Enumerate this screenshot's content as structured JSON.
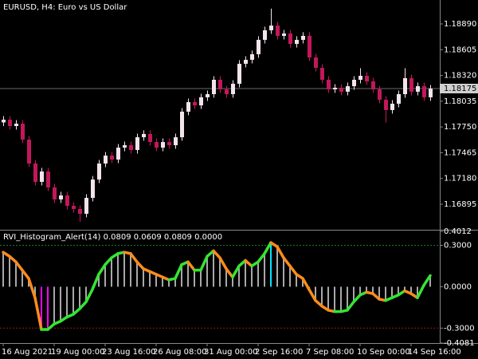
{
  "chart_data": [
    {
      "type": "candlestick",
      "title": "EURUSD, H4:  Euro vs US Dollar",
      "up_color": "#f3e4ec",
      "down_color": "#c2185b",
      "ylim": [
        1.16612,
        1.19155
      ],
      "yticks": [
        {
          "value": 1.1889,
          "label": "1.18890"
        },
        1.18605,
        {
          "value": 1.1832,
          "label": "1.18320"
        },
        1.18035,
        {
          "value": 1.1775,
          "label": "1.17750"
        },
        1.17465,
        {
          "value": 1.1718,
          "label": "1.17180"
        },
        1.16895
      ],
      "last_price": 1.18175,
      "open": [
        1.178,
        1.1783,
        1.1776,
        1.17786,
        1.1761,
        1.17345,
        1.17142,
        1.17257,
        1.1708,
        1.16948,
        1.16992,
        1.16877,
        1.16842,
        1.16789,
        1.16965,
        1.17168,
        1.17345,
        1.17433,
        1.17389,
        1.17521,
        1.17548,
        1.17495,
        1.17636,
        1.17672,
        1.17583,
        1.17521,
        1.17583,
        1.17548,
        1.17636,
        1.17919,
        1.18025,
        1.17989,
        1.18078,
        1.18113,
        1.18272,
        1.18166,
        1.18113,
        1.18228,
        1.18449,
        1.18493,
        1.18555,
        1.18714,
        1.1882,
        1.18872,
        1.18758,
        1.18784,
        1.18669,
        1.18714,
        1.18758,
        1.18519,
        1.18404,
        1.18272,
        1.18166,
        1.18184,
        1.1814,
        1.18201,
        1.18272,
        1.18316,
        1.18254,
        1.18166,
        1.18051,
        1.17937,
        1.18007,
        1.18113,
        1.1829,
        1.1814,
        1.18201,
        1.18078
      ],
      "high": [
        1.1787,
        1.1787,
        1.17826,
        1.17826,
        1.1765,
        1.17385,
        1.17297,
        1.17297,
        1.1712,
        1.17032,
        1.17032,
        1.16917,
        1.16882,
        1.17005,
        1.17208,
        1.17385,
        1.17473,
        1.17473,
        1.17561,
        1.17588,
        1.17588,
        1.17676,
        1.17712,
        1.17712,
        1.17623,
        1.17623,
        1.17623,
        1.17676,
        1.17959,
        1.18065,
        1.18065,
        1.18118,
        1.18153,
        1.18312,
        1.18312,
        1.18206,
        1.18268,
        1.18489,
        1.18533,
        1.18595,
        1.18754,
        1.1886,
        1.1906,
        1.18912,
        1.18824,
        1.18824,
        1.18754,
        1.18798,
        1.18798,
        1.18559,
        1.18444,
        1.18312,
        1.18224,
        1.18224,
        1.18241,
        1.18312,
        1.184,
        1.18356,
        1.18294,
        1.18206,
        1.18091,
        1.18047,
        1.18153,
        1.184,
        1.1833,
        1.18241,
        1.18241,
        1.18215
      ],
      "low": [
        1.1776,
        1.1772,
        1.1772,
        1.1757,
        1.17305,
        1.17102,
        1.17102,
        1.1704,
        1.16908,
        1.16908,
        1.16837,
        1.16802,
        1.167,
        1.16749,
        1.16925,
        1.17128,
        1.17305,
        1.17349,
        1.17349,
        1.17481,
        1.17455,
        1.17455,
        1.17596,
        1.17543,
        1.17481,
        1.17481,
        1.17508,
        1.17508,
        1.17596,
        1.17879,
        1.17949,
        1.17949,
        1.18038,
        1.18073,
        1.18126,
        1.18073,
        1.18073,
        1.18188,
        1.18409,
        1.18453,
        1.18515,
        1.18674,
        1.1878,
        1.18718,
        1.18718,
        1.18629,
        1.18629,
        1.18674,
        1.18479,
        1.18364,
        1.18232,
        1.18126,
        1.18126,
        1.181,
        1.181,
        1.18161,
        1.18232,
        1.18214,
        1.18126,
        1.18011,
        1.178,
        1.17897,
        1.17967,
        1.18073,
        1.181,
        1.181,
        1.18038,
        1.18038
      ],
      "close": [
        1.1783,
        1.1776,
        1.17786,
        1.1761,
        1.17345,
        1.17142,
        1.17257,
        1.1708,
        1.16948,
        1.16992,
        1.16877,
        1.16842,
        1.16789,
        1.16965,
        1.17168,
        1.17345,
        1.17433,
        1.17389,
        1.17521,
        1.17548,
        1.17495,
        1.17636,
        1.17672,
        1.17583,
        1.17521,
        1.17583,
        1.17548,
        1.17636,
        1.17919,
        1.18025,
        1.17989,
        1.18078,
        1.18113,
        1.18272,
        1.18166,
        1.18113,
        1.18228,
        1.18449,
        1.18493,
        1.18555,
        1.18714,
        1.1882,
        1.18872,
        1.18758,
        1.18784,
        1.18669,
        1.18714,
        1.18758,
        1.18519,
        1.18404,
        1.18272,
        1.18166,
        1.18184,
        1.1814,
        1.18201,
        1.18272,
        1.18316,
        1.18254,
        1.18166,
        1.18051,
        1.17937,
        1.18007,
        1.18113,
        1.1829,
        1.1814,
        1.18201,
        1.18078,
        1.18175
      ]
    },
    {
      "type": "histogram-line",
      "title": "RVI_Histogram_Alert(14) 0.0809 0.0609 0.0809 0.0000",
      "ylim": [
        -0.4081,
        0.4012
      ],
      "yticks": [
        0.4012,
        {
          "value": 0.3,
          "label": "0.3000"
        },
        {
          "value": 0,
          "label": "0.0000"
        },
        {
          "value": -0.3,
          "label": "-0.3000"
        },
        -0.4081
      ],
      "levels": [
        0.3,
        -0.3
      ],
      "level_colors": [
        "#1f7a1f",
        "#8b1a1a"
      ],
      "bar_color": "#a8a8a8",
      "above_level_color": "#00e5ff",
      "below_level_color": "#ff00ff",
      "up_color": "#32e632",
      "down_color": "#ff8c1a",
      "xlim": [
        -0.5,
        68.5
      ],
      "xticks": [
        {
          "value": 0,
          "label": "16 Aug 2021"
        },
        {
          "value": 8,
          "label": "19 Aug 00:00"
        },
        {
          "value": 16,
          "label": "23 Aug 16:00"
        },
        {
          "value": 24,
          "label": "26 Aug 08:00"
        },
        {
          "value": 32,
          "label": "31 Aug 00:00"
        },
        {
          "value": 40,
          "label": "2 Sep 16:00"
        },
        {
          "value": 48,
          "label": "7 Sep 08:00"
        },
        {
          "value": 56,
          "label": "10 Sep 00:00"
        },
        {
          "value": 64,
          "label": "14 Sep 16:00"
        }
      ],
      "values": [
        0.25,
        0.22,
        0.18,
        0.12,
        0.06,
        -0.08,
        -0.31,
        -0.31,
        -0.27,
        -0.25,
        -0.22,
        -0.2,
        -0.16,
        -0.11,
        -0.02,
        0.09,
        0.16,
        0.21,
        0.24,
        0.25,
        0.24,
        0.18,
        0.13,
        0.11,
        0.09,
        0.07,
        0.05,
        0.06,
        0.16,
        0.18,
        0.12,
        0.12,
        0.22,
        0.26,
        0.21,
        0.13,
        0.07,
        0.15,
        0.19,
        0.15,
        0.18,
        0.24,
        0.32,
        0.29,
        0.21,
        0.15,
        0.09,
        0.06,
        -0.02,
        -0.1,
        -0.14,
        -0.17,
        -0.18,
        -0.18,
        -0.17,
        -0.11,
        -0.06,
        -0.04,
        -0.05,
        -0.09,
        -0.1,
        -0.08,
        -0.06,
        -0.03,
        -0.05,
        -0.08,
        0.01,
        0.0809
      ]
    }
  ]
}
